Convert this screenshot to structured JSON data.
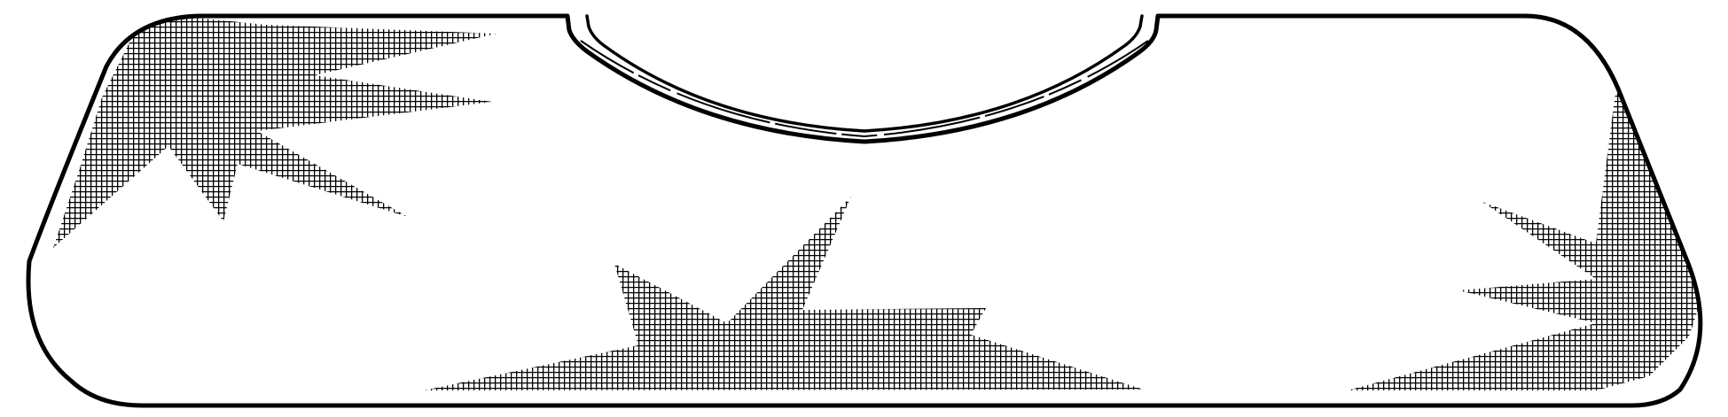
{
  "drawing": {
    "subject": "garment-panel-with-star-print",
    "line_color": "#000000",
    "background_color": "#ffffff",
    "hatch_color": "#000000",
    "hatch_pattern": "crosshatch-grid",
    "star_motifs": [
      "star-top-left",
      "star-bottom-center",
      "star-right-edge"
    ]
  }
}
